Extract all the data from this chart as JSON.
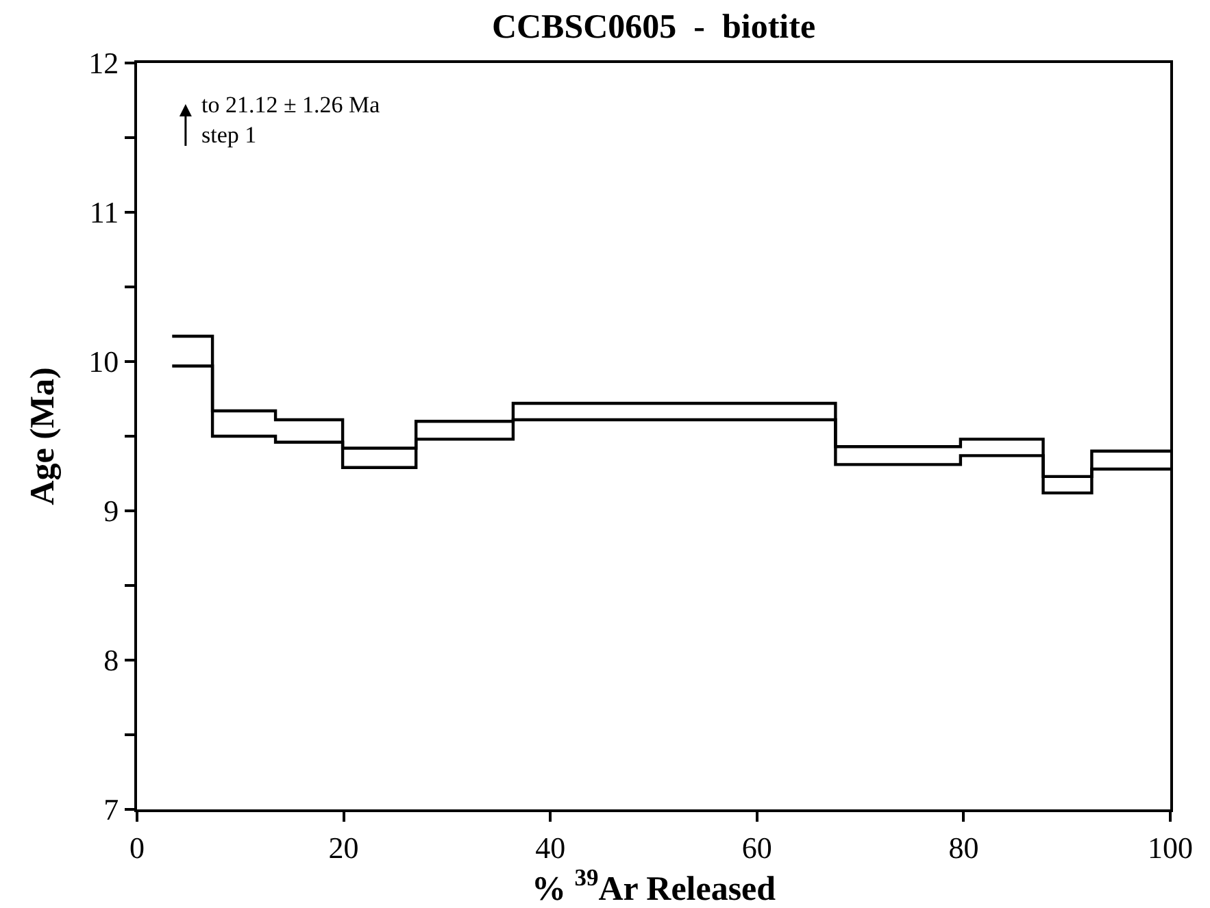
{
  "chart_data": {
    "type": "step",
    "title": "CCBSC0605  -  biotite",
    "xlabel": "% $^{39}$Ar Released",
    "ylabel": "Age (Ma)",
    "x": [
      3.4,
      7.3,
      13.4,
      19.9,
      27.0,
      36.4,
      50.0,
      67.6,
      79.7,
      87.7,
      92.4,
      100
    ],
    "series": [
      {
        "color": "#000000",
        "values": [
          10.17,
          9.67,
          9.61,
          9.42,
          9.6,
          9.72,
          9.72,
          9.43,
          9.48,
          9.23,
          9.4,
          9.4
        ]
      },
      {
        "color": "#000000",
        "values": [
          9.97,
          9.5,
          9.46,
          9.29,
          9.48,
          9.61,
          9.61,
          9.31,
          9.37,
          9.12,
          9.28,
          9.28
        ]
      }
    ],
    "annotations": [
      "to 21.12 ± 1.26 Ma\nstep 1"
    ],
    "xlim": [
      0,
      100
    ],
    "xticks": [
      0,
      20,
      40,
      60,
      80,
      100
    ],
    "ylim": [
      7,
      12
    ],
    "yticks": [
      7,
      {
        "value": 7.5,
        "label": null
      },
      8,
      {
        "value": 8.5,
        "label": null
      },
      9,
      {
        "value": 9.5,
        "label": null
      },
      10,
      {
        "value": 10.5,
        "label": null
      },
      11,
      {
        "value": 11.5,
        "label": null
      },
      12
    ],
    "marker": "none",
    "line_style": "solid"
  }
}
